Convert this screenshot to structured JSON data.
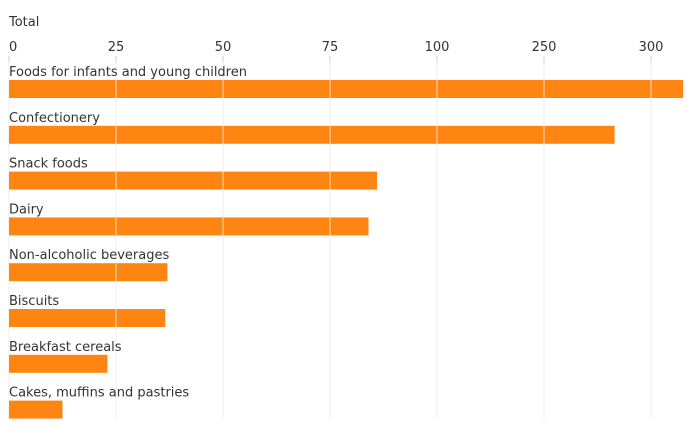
{
  "chart_data": {
    "type": "bar",
    "orientation": "horizontal",
    "axis_title": "Total",
    "tick_labels": [
      "0",
      "25",
      "50",
      "75",
      "100",
      "250",
      "300"
    ],
    "categories": [
      "Foods for infants and young children",
      "Confectionery",
      "Snack foods",
      "Dairy",
      "Non-alcoholic beverages",
      "Biscuits",
      "Breakfast cereals",
      "Cakes, muffins and pastries"
    ],
    "values": [
      315,
      283,
      86,
      84,
      37,
      36.5,
      23,
      12.5
    ],
    "axis_scale": "broken (piecewise: 0–100 linear, then 100 → 250 → 300 at equal spacing)",
    "grid": true,
    "bar_color": "#ff8512",
    "gridline_color": "#ffffff",
    "axis_gridline_color": "#cccccc"
  }
}
